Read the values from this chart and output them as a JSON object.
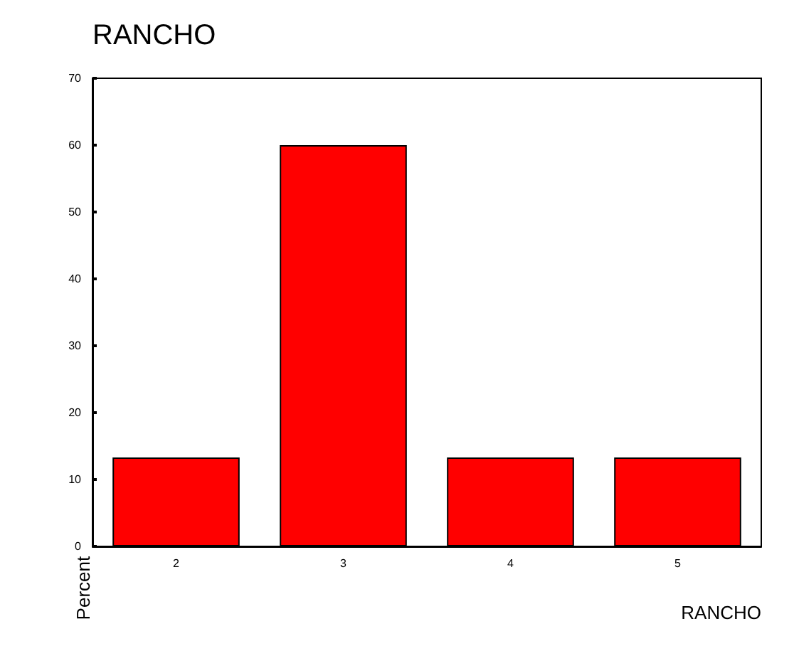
{
  "chart_data": {
    "type": "bar",
    "title": "RANCHO",
    "xlabel": "RANCHO",
    "ylabel": "Percent",
    "categories": [
      "2",
      "3",
      "4",
      "5"
    ],
    "values": [
      13.3,
      60,
      13.3,
      13.3
    ],
    "color": "#ff0000",
    "ylim": [
      0,
      70
    ],
    "yticks": [
      0,
      10,
      20,
      30,
      40,
      50,
      60,
      70
    ],
    "grid": false
  }
}
